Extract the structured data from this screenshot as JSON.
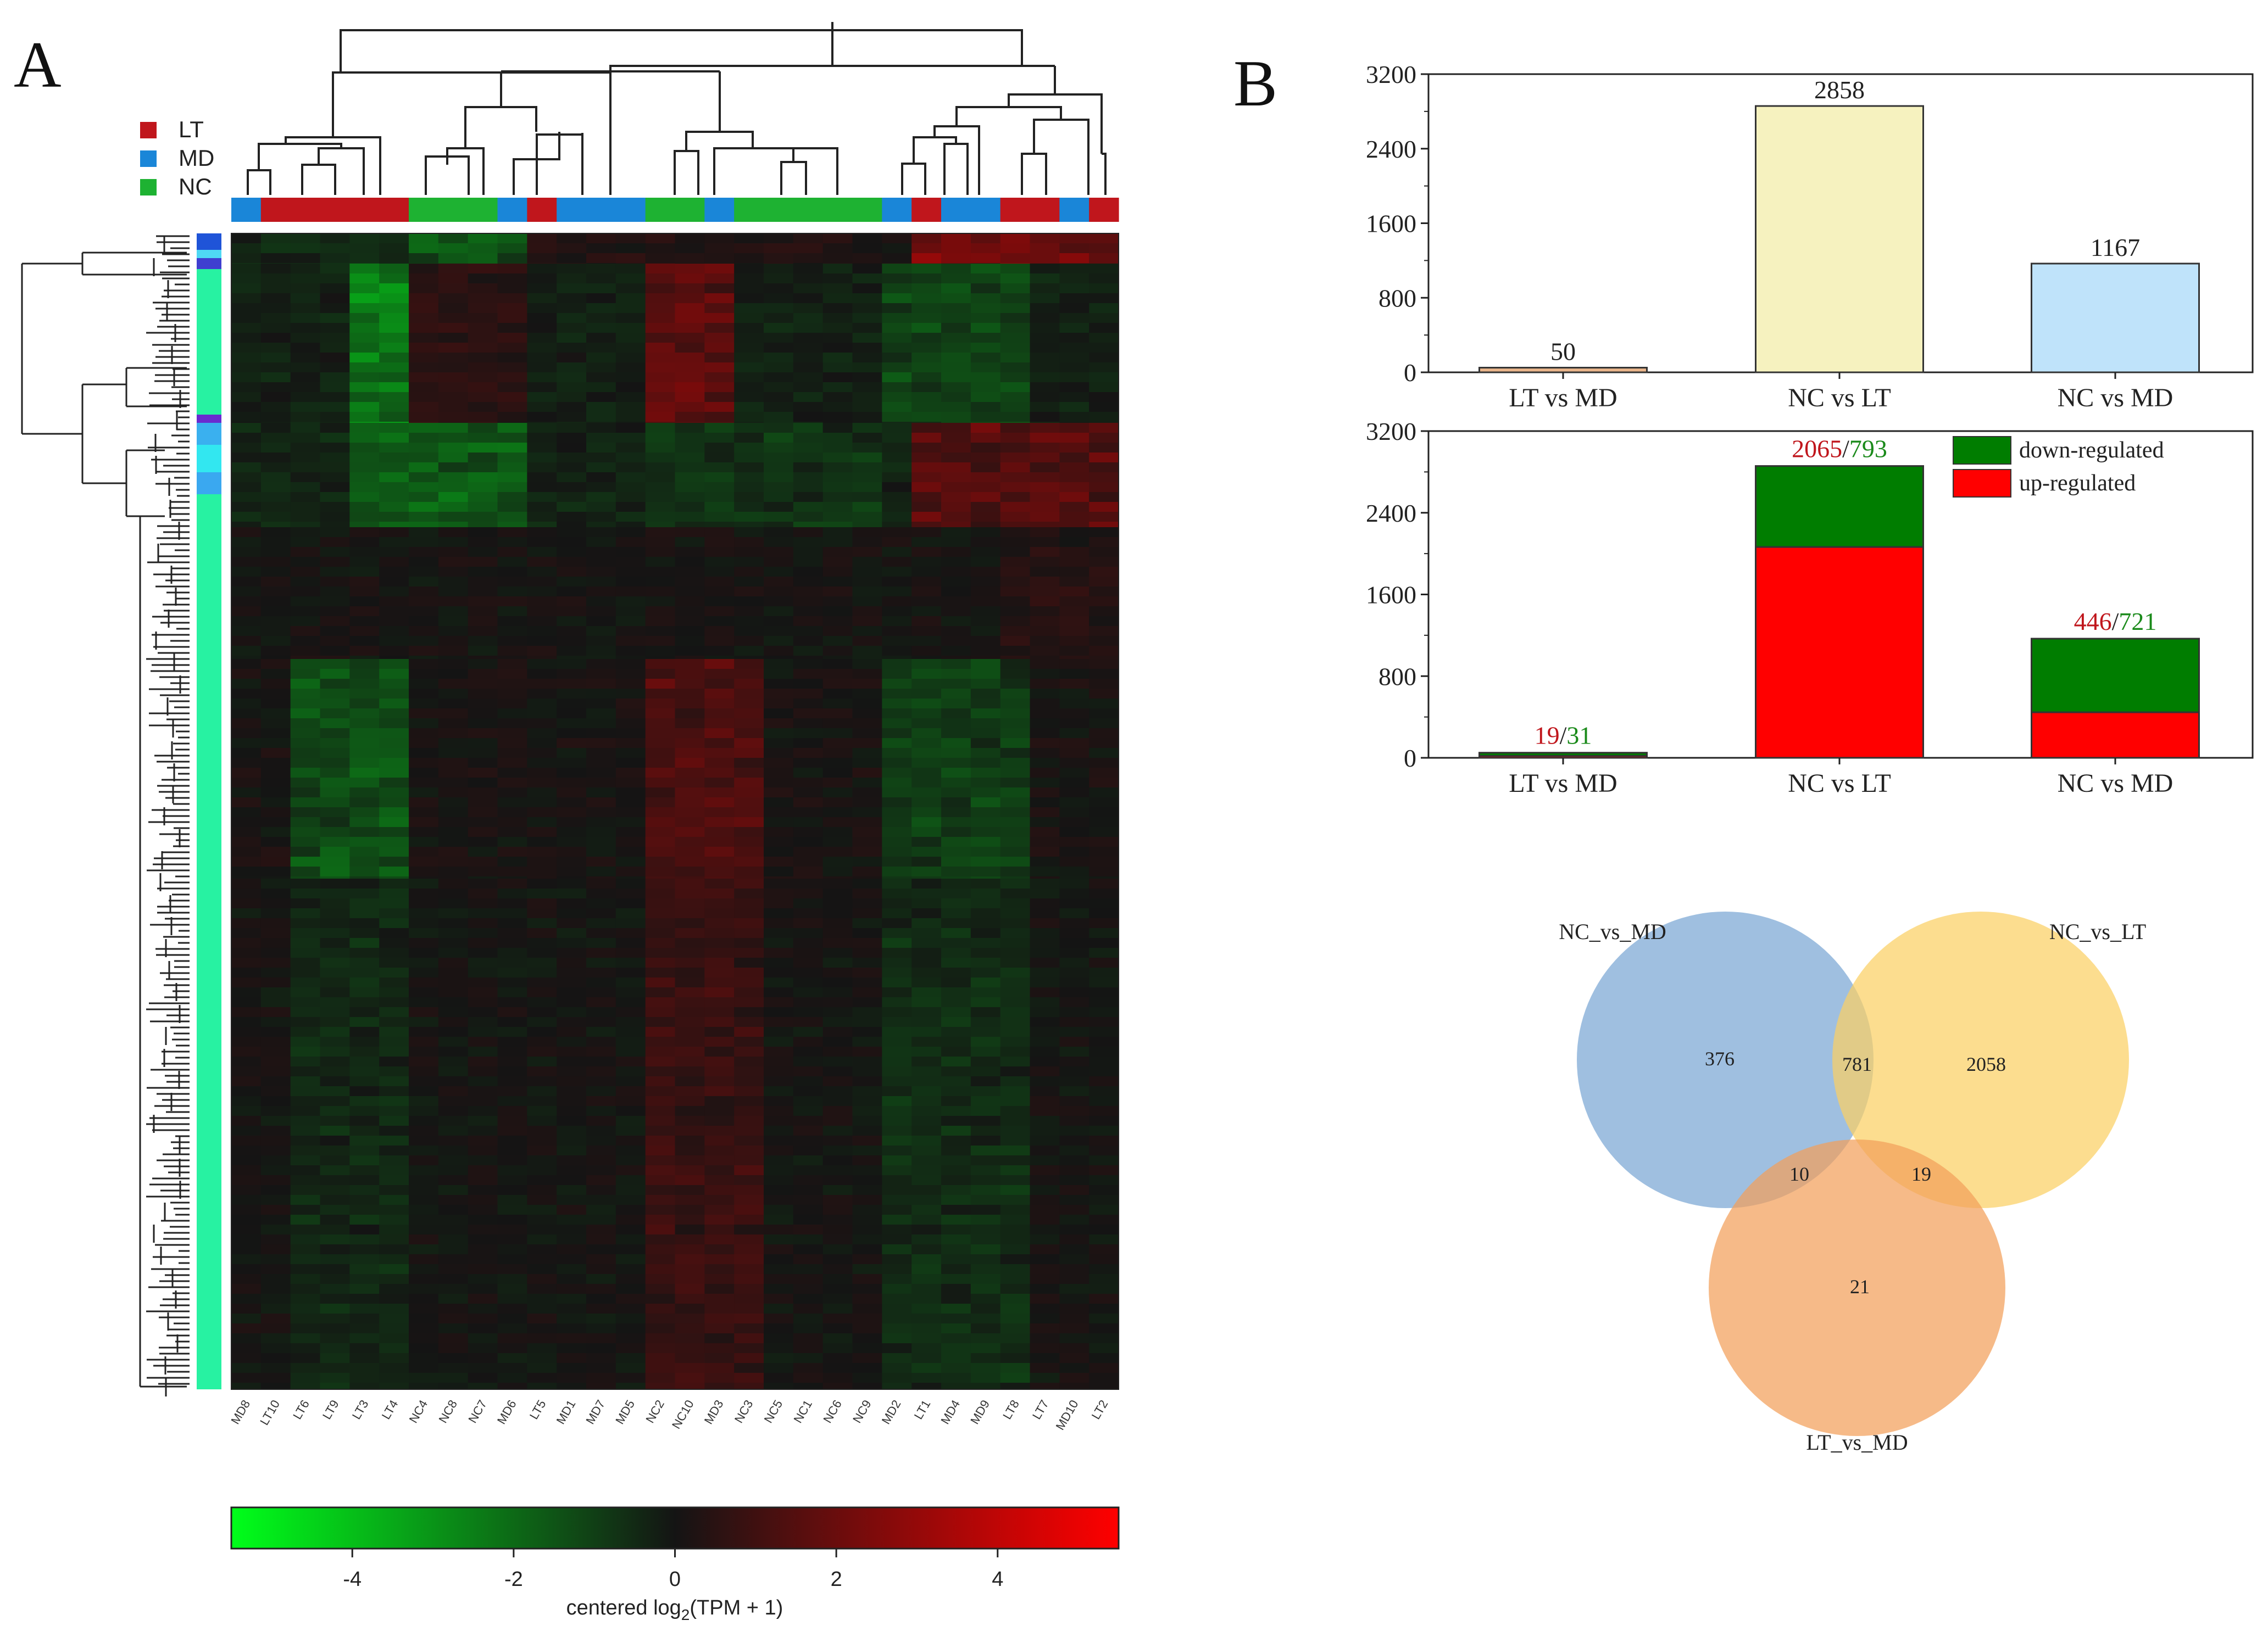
{
  "panels": {
    "a_label": "A",
    "b_label": "B"
  },
  "heatmap": {
    "groups": [
      {
        "name": "LT",
        "color": "#c0161c"
      },
      {
        "name": "MD",
        "color": "#1a86d8"
      },
      {
        "name": "NC",
        "color": "#1eb232"
      }
    ],
    "samples": [
      {
        "label": "MD8",
        "group": "MD"
      },
      {
        "label": "LT10",
        "group": "LT"
      },
      {
        "label": "LT6",
        "group": "LT"
      },
      {
        "label": "LT9",
        "group": "LT"
      },
      {
        "label": "LT3",
        "group": "LT"
      },
      {
        "label": "LT4",
        "group": "LT"
      },
      {
        "label": "NC4",
        "group": "NC"
      },
      {
        "label": "NC8",
        "group": "NC"
      },
      {
        "label": "NC7",
        "group": "NC"
      },
      {
        "label": "MD6",
        "group": "MD"
      },
      {
        "label": "LT5",
        "group": "LT"
      },
      {
        "label": "MD1",
        "group": "MD"
      },
      {
        "label": "MD7",
        "group": "MD"
      },
      {
        "label": "MD5",
        "group": "MD"
      },
      {
        "label": "NC2",
        "group": "NC"
      },
      {
        "label": "NC10",
        "group": "NC"
      },
      {
        "label": "MD3",
        "group": "MD"
      },
      {
        "label": "NC3",
        "group": "NC"
      },
      {
        "label": "NC5",
        "group": "NC"
      },
      {
        "label": "NC1",
        "group": "NC"
      },
      {
        "label": "NC6",
        "group": "NC"
      },
      {
        "label": "NC9",
        "group": "NC"
      },
      {
        "label": "MD2",
        "group": "MD"
      },
      {
        "label": "LT1",
        "group": "LT"
      },
      {
        "label": "MD4",
        "group": "MD"
      },
      {
        "label": "MD9",
        "group": "MD"
      },
      {
        "label": "LT8",
        "group": "LT"
      },
      {
        "label": "LT7",
        "group": "LT"
      },
      {
        "label": "MD10",
        "group": "MD"
      },
      {
        "label": "LT2",
        "group": "LT"
      }
    ],
    "colorscale": {
      "min": -5.5,
      "max": 5.5,
      "low_color": "#00ff1a",
      "mid_color": "#141414",
      "high_color": "#ff0000",
      "ticks": [
        "-4",
        "-2",
        "0",
        "2",
        "4"
      ],
      "label_prefix": "centered log",
      "label_sub": "2",
      "label_suffix": "(TPM + 1)"
    }
  },
  "chart_data": [
    {
      "type": "bar",
      "categories": [
        "LT vs MD",
        "NC vs LT",
        "NC vs MD"
      ],
      "values": [
        50,
        2858,
        1167
      ],
      "data_labels": [
        "50",
        "2858",
        "1167"
      ],
      "colors": [
        "#e8b48a",
        "#f6f2bf",
        "#bfe3fa"
      ],
      "ylim": [
        0,
        3200
      ],
      "yticks": [
        "0",
        "800",
        "1600",
        "2400",
        "3200"
      ]
    },
    {
      "type": "bar",
      "stacked": true,
      "categories": [
        "LT vs MD",
        "NC vs LT",
        "NC vs MD"
      ],
      "series": [
        {
          "name": "up-regulated",
          "values": [
            19,
            2065,
            446
          ],
          "color": "#ff0000"
        },
        {
          "name": "down-regulated",
          "values": [
            31,
            793,
            721
          ],
          "color": "#007d00"
        }
      ],
      "data_labels": [
        {
          "up": "19",
          "sep": "/",
          "down": "31"
        },
        {
          "up": "2065",
          "sep": "/",
          "down": "793"
        },
        {
          "up": "446",
          "sep": "/",
          "down": "721"
        }
      ],
      "ylim": [
        0,
        3200
      ],
      "yticks": [
        "0",
        "800",
        "1600",
        "2400",
        "3200"
      ],
      "legend": "top-right"
    }
  ],
  "venn": {
    "sets": [
      {
        "name": "NC_vs_MD",
        "color": "#7aa6d4"
      },
      {
        "name": "NC_vs_LT",
        "color": "#fbd064"
      },
      {
        "name": "LT_vs_MD",
        "color": "#f2a05a"
      }
    ],
    "regions": {
      "md_only": "376",
      "lt_only": "2058",
      "ltmd_only": "21",
      "md_lt": "781",
      "md_ltmd": "10",
      "lt_ltmd": "19"
    }
  }
}
